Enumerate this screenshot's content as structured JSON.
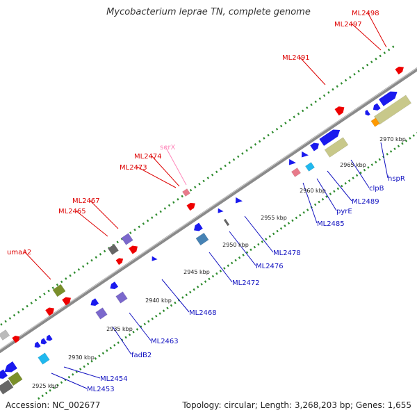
{
  "title": "Mycobacterium leprae TN, complete genome",
  "accession_label": "Accession: NC_002677",
  "summary_label": "Topology: circular; Length: 3,268,203 bp; Genes: 1,655",
  "colors": {
    "backbone": "#8a8a8a",
    "tick": "#2e8b2e",
    "forward_label": "#dd0000",
    "reverse_label": "#1010c0",
    "rna_label": "#ff88bb",
    "red_feature": "#ee0000",
    "blue_feature": "#1a1aee",
    "purple_feature": "#7b68cc",
    "steel_feature": "#4682b4",
    "olive_feature": "#7a8f2a",
    "khaki_feature": "#c8c88a",
    "cyan_feature": "#20b8ee",
    "gray_feature": "#666666",
    "pink_feature": "#e87a8a",
    "orange_feature": "#ff9900"
  },
  "scale_labels": [
    "2925 kbp",
    "2930 kbp",
    "2935 kbp",
    "2940 kbp",
    "2945 kbp",
    "2950 kbp",
    "2955 kbp",
    "2960 kbp",
    "2965 kbp",
    "2970 kbp"
  ],
  "gene_labels": [
    {
      "text": "ML2498",
      "color": "red"
    },
    {
      "text": "ML2497",
      "color": "red"
    },
    {
      "text": "ML2491",
      "color": "red"
    },
    {
      "text": "serX",
      "color": "pink"
    },
    {
      "text": "ML2474",
      "color": "red"
    },
    {
      "text": "ML2473",
      "color": "red"
    },
    {
      "text": "ML2467",
      "color": "red"
    },
    {
      "text": "ML2465",
      "color": "red"
    },
    {
      "text": "umaA2",
      "color": "red"
    },
    {
      "text": "hspR",
      "color": "blue"
    },
    {
      "text": "clpB",
      "color": "blue"
    },
    {
      "text": "ML2489",
      "color": "blue"
    },
    {
      "text": "pyrE",
      "color": "blue"
    },
    {
      "text": "ML2485",
      "color": "blue"
    },
    {
      "text": "ML2478",
      "color": "blue"
    },
    {
      "text": "ML2476",
      "color": "blue"
    },
    {
      "text": "ML2472",
      "color": "blue"
    },
    {
      "text": "ML2468",
      "color": "blue"
    },
    {
      "text": "ML2463",
      "color": "blue"
    },
    {
      "text": "fadB2",
      "color": "blue"
    },
    {
      "text": "ML2454",
      "color": "blue"
    },
    {
      "text": "ML2453",
      "color": "blue"
    }
  ]
}
